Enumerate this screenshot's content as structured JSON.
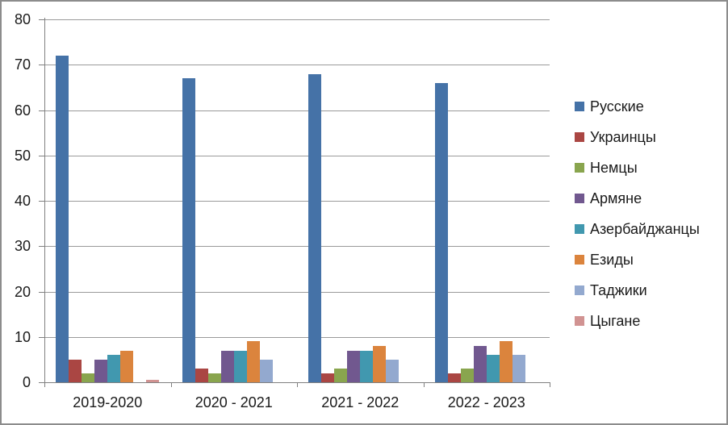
{
  "chart_data": {
    "type": "bar",
    "title": "",
    "xlabel": "",
    "ylabel": "",
    "categories": [
      "2019-2020",
      "2020 - 2021",
      "2021 - 2022",
      "2022 - 2023"
    ],
    "series": [
      {
        "name": "Русские",
        "color": "#4572A7",
        "values": [
          72,
          67,
          68,
          66
        ]
      },
      {
        "name": "Украинцы",
        "color": "#AA4643",
        "values": [
          5,
          3,
          2,
          2
        ]
      },
      {
        "name": "Немцы",
        "color": "#89A54E",
        "values": [
          2,
          2,
          3,
          3
        ]
      },
      {
        "name": "Армяне",
        "color": "#71588F",
        "values": [
          5,
          7,
          7,
          8
        ]
      },
      {
        "name": "Азербайджанцы",
        "color": "#4198AF",
        "values": [
          6,
          7,
          7,
          6
        ]
      },
      {
        "name": "Езиды",
        "color": "#DB843D",
        "values": [
          7,
          9,
          8,
          9
        ]
      },
      {
        "name": "Таджики",
        "color": "#93A9CF",
        "values": [
          0,
          5,
          5,
          6
        ]
      },
      {
        "name": "Цыгане",
        "color": "#D19392",
        "values": [
          0.5,
          0,
          0,
          0
        ]
      }
    ],
    "ylim": [
      0,
      80
    ],
    "yticks": [
      0,
      10,
      20,
      30,
      40,
      50,
      60,
      70,
      80
    ],
    "grid": true,
    "legend_position": "right",
    "colors": {
      "gridline": "#9A9A9A",
      "axis": "#808080",
      "frame_border": "#8C8C8C",
      "text": "#1A1A1A",
      "background": "#FFFFFF"
    }
  }
}
